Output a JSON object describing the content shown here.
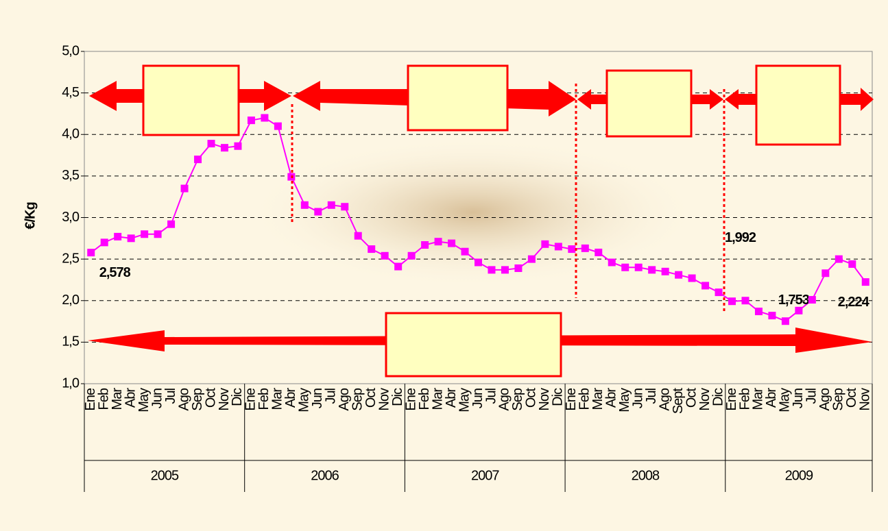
{
  "chart_data": {
    "type": "line",
    "ylabel": "€/Kg",
    "categories": [
      "Ene",
      "Feb",
      "Mar",
      "Abr",
      "May",
      "Jun",
      "Jul",
      "Ago",
      "Sep",
      "Oct",
      "Nov",
      "Dic",
      "Ene",
      "Feb",
      "Mar",
      "Abr",
      "May",
      "Jun",
      "Jul",
      "Ago",
      "Sep",
      "Oct",
      "Nov",
      "Dic",
      "Ene",
      "Feb",
      "Mar",
      "Abr",
      "May",
      "Jun",
      "Jul",
      "Ago",
      "Sep",
      "Oct",
      "Nov",
      "Dic",
      "Ene",
      "Feb",
      "Mar",
      "Abr",
      "May",
      "Jun",
      "Jul",
      "Ago",
      "Sept",
      "Oct",
      "Nov",
      "Dic",
      "Ene",
      "Feb",
      "Mar",
      "Abr",
      "May",
      "Jun",
      "Jul",
      "Ago",
      "Sep",
      "Oct",
      "Nov"
    ],
    "groups": [
      "2005",
      "2006",
      "2007",
      "2008",
      "2009"
    ],
    "series": [
      {
        "name": "€/Kg",
        "color": "#ff00ff",
        "values": [
          2.578,
          2.7,
          2.77,
          2.75,
          2.8,
          2.8,
          2.92,
          3.35,
          3.7,
          3.89,
          3.84,
          3.86,
          4.17,
          4.2,
          4.1,
          3.49,
          3.15,
          3.07,
          3.15,
          3.13,
          2.78,
          2.62,
          2.54,
          2.41,
          2.54,
          2.67,
          2.71,
          2.69,
          2.59,
          2.46,
          2.37,
          2.37,
          2.39,
          2.5,
          2.68,
          2.65,
          2.62,
          2.63,
          2.58,
          2.46,
          2.4,
          2.4,
          2.37,
          2.35,
          2.31,
          2.27,
          2.18,
          2.1,
          1.992,
          2.0,
          1.87,
          1.82,
          1.753,
          1.88,
          2.01,
          2.33,
          2.5,
          2.44,
          2.224
        ],
        "value_labels": [
          "2,578",
          null,
          null,
          null,
          null,
          null,
          null,
          null,
          null,
          null,
          null,
          null,
          null,
          null,
          null,
          null,
          null,
          null,
          null,
          null,
          null,
          null,
          null,
          null,
          null,
          null,
          null,
          null,
          null,
          null,
          null,
          null,
          null,
          null,
          null,
          null,
          null,
          null,
          null,
          null,
          null,
          null,
          null,
          null,
          null,
          null,
          null,
          null,
          "1,992",
          null,
          null,
          null,
          "1,753",
          null,
          null,
          null,
          null,
          null,
          "2,224"
        ]
      }
    ],
    "ylim": [
      1,
      5
    ],
    "yticks": [
      {
        "value": 1,
        "label": "1,0"
      },
      {
        "value": 1.5,
        "label": "1,5"
      },
      {
        "value": 2,
        "label": "2,0"
      },
      {
        "value": 2.5,
        "label": "2,5"
      },
      {
        "value": 3,
        "label": "3,0"
      },
      {
        "value": 3.5,
        "label": "3,5"
      },
      {
        "value": 4,
        "label": "4,0"
      },
      {
        "value": 4.5,
        "label": "4,5"
      },
      {
        "value": 5,
        "label": "5,0"
      }
    ],
    "grid": true
  }
}
